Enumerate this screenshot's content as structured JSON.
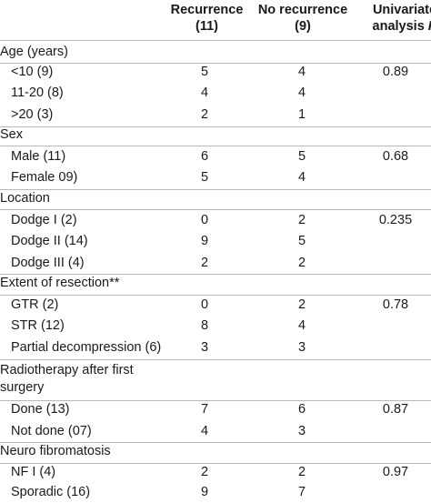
{
  "header": {
    "col1_line1": "Recurrence",
    "col1_line2": "(11)",
    "col2_line1": "No recurrence",
    "col2_line2": "(9)",
    "col3_line1": "Univariate",
    "col3_line2_text": "analysis ",
    "col3_line2_italic": "P"
  },
  "rows": [
    {
      "label": "Age (years)",
      "c1": "",
      "c2": "",
      "c3": ""
    },
    {
      "label": "<10 (9)",
      "c1": "5",
      "c2": "4",
      "c3": "0.89"
    },
    {
      "label": "11-20 (8)",
      "c1": "4",
      "c2": "4",
      "c3": ""
    },
    {
      "label": ">20 (3)",
      "c1": "2",
      "c2": "1",
      "c3": ""
    },
    {
      "label": "Sex",
      "c1": "",
      "c2": "",
      "c3": ""
    },
    {
      "label": "Male (11)",
      "c1": "6",
      "c2": "5",
      "c3": "0.68"
    },
    {
      "label": "Female 09)",
      "c1": "5",
      "c2": "4",
      "c3": ""
    },
    {
      "label": "Location",
      "c1": "",
      "c2": "",
      "c3": ""
    },
    {
      "label": "Dodge I (2)",
      "c1": "0",
      "c2": "2",
      "c3": "0.235"
    },
    {
      "label": "Dodge II (14)",
      "c1": "9",
      "c2": "5",
      "c3": ""
    },
    {
      "label": "Dodge III (4)",
      "c1": "2",
      "c2": "2",
      "c3": ""
    },
    {
      "label": "Extent of resection**",
      "c1": "",
      "c2": "",
      "c3": ""
    },
    {
      "label": "GTR (2)",
      "c1": "0",
      "c2": "2",
      "c3": "0.78"
    },
    {
      "label": "STR (12)",
      "c1": "8",
      "c2": "4",
      "c3": ""
    },
    {
      "label": "Partial decompression (6)",
      "c1": "3",
      "c2": "3",
      "c3": ""
    },
    {
      "label_line1": "Radiotherapy after first",
      "label_line2": "surgery",
      "c1": "",
      "c2": "",
      "c3": ""
    },
    {
      "label": "Done (13)",
      "c1": "7",
      "c2": "6",
      "c3": "0.87"
    },
    {
      "label": "Not done (07)",
      "c1": "4",
      "c2": "3",
      "c3": ""
    },
    {
      "label": "Neuro fibromatosis",
      "c1": "",
      "c2": "",
      "c3": ""
    },
    {
      "label": "NF I (4)",
      "c1": "2",
      "c2": "2",
      "c3": "0.97"
    },
    {
      "label": "Sporadic (16)",
      "c1": "9",
      "c2": "7",
      "c3": ""
    }
  ]
}
